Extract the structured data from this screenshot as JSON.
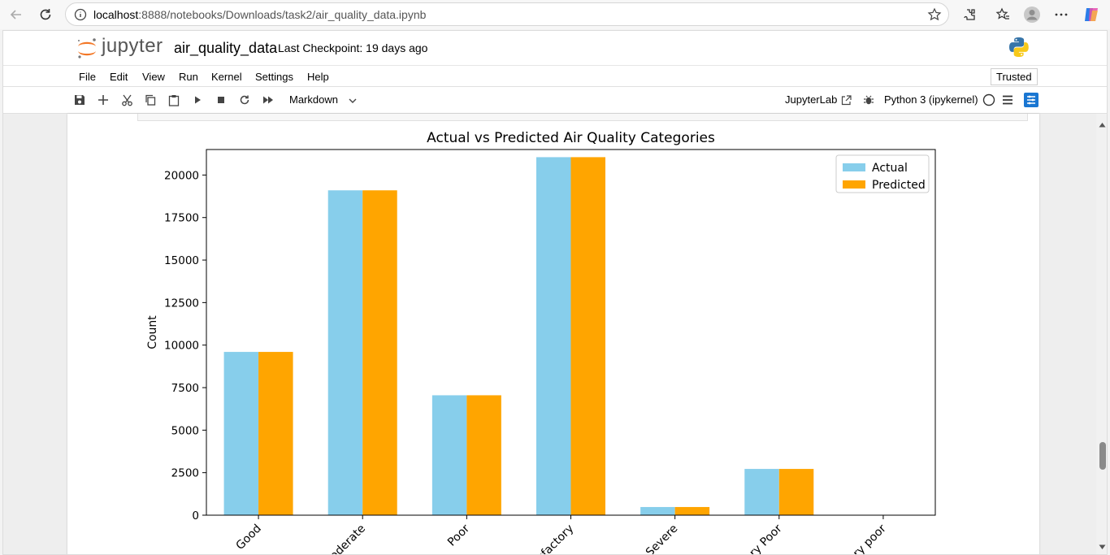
{
  "browser": {
    "url_host": "localhost",
    "url_rest": ":8888/notebooks/Downloads/task2/air_quality_data.ipynb"
  },
  "header": {
    "logo_text": "jupyter",
    "notebook_title": "air_quality_data",
    "checkpoint": "Last Checkpoint: 19 days ago"
  },
  "menu": {
    "items": [
      "File",
      "Edit",
      "View",
      "Run",
      "Kernel",
      "Settings",
      "Help"
    ],
    "trusted": "Trusted"
  },
  "toolbar": {
    "cell_type": "Markdown",
    "jupyterlab": "JupyterLab",
    "kernel": "Python 3 (ipykernel)"
  },
  "colors": {
    "actual": "#87ceeb",
    "predicted": "#ffa500"
  },
  "chart_data": {
    "type": "bar",
    "title": "Actual vs Predicted Air Quality Categories",
    "xlabel": "",
    "ylabel": "Count",
    "ylim": [
      0,
      21500
    ],
    "yticks": [
      0,
      2500,
      5000,
      7500,
      10000,
      12500,
      15000,
      17500,
      20000
    ],
    "categories": [
      "Good",
      "Moderate",
      "Poor",
      "Satisfactory",
      "Severe",
      "Very Poor",
      "Very poor"
    ],
    "category_labels_visible": [
      "Good",
      "derate",
      "Poor",
      "tisfactory",
      "Severe",
      "y Poor",
      "y poor"
    ],
    "series": [
      {
        "name": "Actual",
        "values": [
          9600,
          19100,
          7050,
          21050,
          480,
          2720,
          0
        ]
      },
      {
        "name": "Predicted",
        "values": [
          9600,
          19100,
          7050,
          21050,
          480,
          2720,
          0
        ]
      }
    ],
    "grid": false,
    "legend": "top-right"
  }
}
